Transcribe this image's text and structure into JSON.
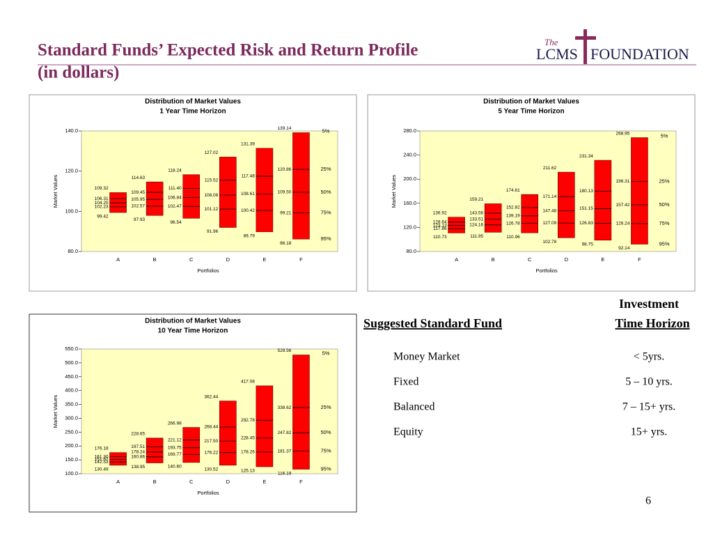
{
  "header": {
    "title_line1": "Standard Funds’ Expected Risk and Return Profile",
    "title_line2": "(in dollars)",
    "logo": {
      "the": "The",
      "lcms": "LCMS",
      "foundation": "FOUNDATION"
    }
  },
  "chart_data": [
    {
      "type": "range",
      "title": "Distribution of Market Values",
      "subtitle": "1 Year Time Horizon",
      "ylabel": "Market Values",
      "xlabel": "Portfolios",
      "plot_color": "#ffffc0",
      "bar_color": "#ff0000",
      "categories": [
        "A",
        "B",
        "C",
        "D",
        "E",
        "F"
      ],
      "ylim": [
        80,
        140
      ],
      "yticks": [
        {
          "value": 80,
          "label": "80.0"
        },
        {
          "value": 100,
          "label": "100.0"
        },
        {
          "value": 120,
          "label": "120.0"
        },
        {
          "value": 140,
          "label": "140.0"
        }
      ],
      "series": [
        {
          "name": "5%",
          "values": [
            109.32,
            114.63,
            118.24,
            127.02,
            131.39,
            139.14
          ],
          "value_labels": [
            "109.32",
            "114.63",
            "118.24",
            "127.02",
            "131.39",
            "139.14"
          ]
        },
        {
          "name": "25%",
          "values": [
            106.31,
            109.45,
            111.4,
            115.52,
            117.48,
            120.86
          ],
          "value_labels": [
            "106.31",
            "109.45",
            "111.40",
            "115.52",
            "117.48",
            "120.86"
          ]
        },
        {
          "name": "50%",
          "values": [
            104.25,
            105.95,
            106.84,
            108.08,
            108.61,
            109.5
          ],
          "value_labels": [
            "104.25",
            "105.95",
            "106.84",
            "108.08",
            "108.61",
            "109.50"
          ]
        },
        {
          "name": "75%",
          "values": [
            102.23,
            102.57,
            102.47,
            101.12,
            100.42,
            99.21
          ],
          "value_labels": [
            "102.23",
            "102.57",
            "102.47",
            "101.12",
            "100.42",
            "99.21"
          ]
        },
        {
          "name": "95%",
          "values": [
            99.42,
            97.93,
            96.54,
            91.96,
            89.79,
            86.18
          ],
          "value_labels": [
            "99.42",
            "97.93",
            "96.54",
            "91.96",
            "89.79",
            "86.18"
          ]
        }
      ]
    },
    {
      "type": "range",
      "title": "Distribution of Market Values",
      "subtitle": "5 Year Time Horizon",
      "ylabel": "Market Values",
      "xlabel": "Portfolios",
      "plot_color": "#ffffc0",
      "bar_color": "#ff0000",
      "categories": [
        "A",
        "B",
        "C",
        "D",
        "E",
        "F"
      ],
      "ylim": [
        80,
        280
      ],
      "yticks": [
        {
          "value": 80,
          "label": "80.0"
        },
        {
          "value": 120,
          "label": "120.0"
        },
        {
          "value": 160,
          "label": "160.0"
        },
        {
          "value": 200,
          "label": "200.0"
        },
        {
          "value": 240,
          "label": "240.0"
        },
        {
          "value": 280,
          "label": "280.0"
        }
      ],
      "series": [
        {
          "name": "5%",
          "values": [
            136.92,
            159.21,
            174.61,
            211.62,
            231.34,
            268.95
          ],
          "value_labels": [
            "136.92",
            "159.21",
            "174.61",
            "211.62",
            "231.34",
            "268.95"
          ]
        },
        {
          "name": "25%",
          "values": [
            128.64,
            143.56,
            152.82,
            171.14,
            180.13,
            196.31
          ],
          "value_labels": [
            "128.64",
            "143.56",
            "152.82",
            "171.14",
            "180.13",
            "196.31"
          ]
        },
        {
          "name": "50%",
          "values": [
            123.13,
            133.51,
            139.19,
            147.48,
            151.15,
            157.42
          ],
          "value_labels": [
            "123.13",
            "133.51",
            "139.19",
            "147.48",
            "151.15",
            "157.42"
          ]
        },
        {
          "name": "75%",
          "values": [
            117.86,
            124.16,
            126.78,
            127.09,
            126.83,
            126.24
          ],
          "value_labels": [
            "117.86",
            "124.16",
            "126.78",
            "127.09",
            "126.83",
            "126.24"
          ]
        },
        {
          "name": "95%",
          "values": [
            110.73,
            111.95,
            110.96,
            102.78,
            98.75,
            92.14
          ],
          "value_labels": [
            "110.73",
            "111.95",
            "110.96",
            "102.78",
            "98.75",
            "92.14"
          ]
        }
      ]
    },
    {
      "type": "range",
      "title": "Distribution of Market Values",
      "subtitle": "10 Year Time Horizon",
      "ylabel": "Market Values",
      "xlabel": "Portfolios",
      "plot_color": "#ffffc0",
      "bar_color": "#ff0000",
      "categories": [
        "A",
        "B",
        "C",
        "D",
        "E",
        "F"
      ],
      "ylim": [
        100,
        550
      ],
      "yticks": [
        {
          "value": 100,
          "label": "100.0"
        },
        {
          "value": 150,
          "label": "150.0"
        },
        {
          "value": 200,
          "label": "200.0"
        },
        {
          "value": 250,
          "label": "250.0"
        },
        {
          "value": 300,
          "label": "300.0"
        },
        {
          "value": 350,
          "label": "350.0"
        },
        {
          "value": 400,
          "label": "400.0"
        },
        {
          "value": 450,
          "label": "450.0"
        },
        {
          "value": 500,
          "label": "500.0"
        },
        {
          "value": 550,
          "label": "550.0"
        }
      ],
      "series": [
        {
          "name": "5%",
          "values": [
            176.18,
            228.65,
            266.98,
            362.44,
            417.08,
            528.56
          ],
          "value_labels": [
            "176.18",
            "228.65",
            "266.98",
            "362.44",
            "417.08",
            "528.56"
          ]
        },
        {
          "name": "25%",
          "values": [
            161.3,
            197.51,
            221.12,
            268.44,
            292.78,
            338.62
          ],
          "value_labels": [
            "161.30",
            "197.51",
            "221.12",
            "268.44",
            "292.78",
            "338.62"
          ]
        },
        {
          "name": "50%",
          "values": [
            151.62,
            178.24,
            193.75,
            217.5,
            228.45,
            247.82
          ],
          "value_labels": [
            "151.62",
            "178.24",
            "193.75",
            "217.50",
            "228.45",
            "247.82"
          ]
        },
        {
          "name": "75%",
          "values": [
            142.53,
            160.86,
            169.77,
            176.22,
            178.26,
            181.37
          ],
          "value_labels": [
            "142.53",
            "160.86",
            "169.77",
            "176.22",
            "178.26",
            "181.37"
          ]
        },
        {
          "name": "95%",
          "values": [
            130.49,
            138.95,
            140.6,
            130.52,
            125.13,
            116.19
          ],
          "value_labels": [
            "130.49",
            "138.95",
            "140.60",
            "130.52",
            "125.13",
            "116.19"
          ]
        }
      ]
    }
  ],
  "table": {
    "header_left": "Suggested Standard Fund",
    "header_right": [
      "Investment",
      "Time Horizon"
    ],
    "rows": [
      [
        "Money Market",
        "< 5yrs."
      ],
      [
        "Fixed",
        "5 – 10 yrs."
      ],
      [
        "Balanced",
        "7 – 15+ yrs."
      ],
      [
        "Equity",
        "15+ yrs."
      ]
    ]
  },
  "page_number": "6"
}
